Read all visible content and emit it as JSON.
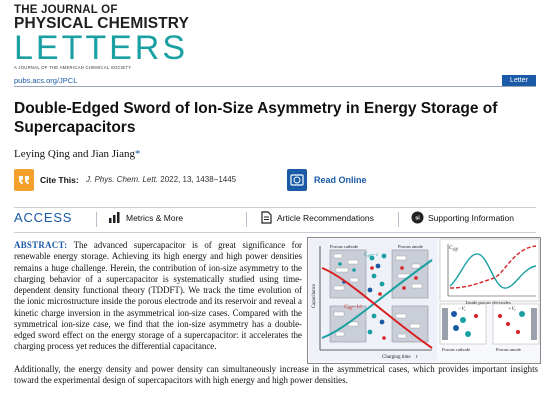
{
  "journal": {
    "line1": "THE JOURNAL OF",
    "line2": "PHYSICAL CHEMISTRY",
    "line3": "LETTERS",
    "subtitle": "A JOURNAL OF THE AMERICAN CHEMICAL SOCIETY"
  },
  "header": {
    "pubs_link": "pubs.acs.org/JPCL",
    "article_type": "Letter"
  },
  "article": {
    "title": "Double-Edged Sword of Ion-Size Asymmetry in Energy Storage of Supercapacitors",
    "authors": "Leying Qing and Jian Jiang",
    "author_mark": "*"
  },
  "cite": {
    "label": "Cite This:",
    "journal": "J. Phys. Chem. Lett.",
    "details": "2022, 13, 1438−1445"
  },
  "read_online": {
    "label": "Read Online"
  },
  "access": {
    "label": "ACCESS",
    "items": [
      {
        "label": "Metrics & More",
        "icon": "bar-chart-icon"
      },
      {
        "label": "Article Recommendations",
        "icon": "document-icon"
      },
      {
        "label": "Supporting Information",
        "icon": "si-icon"
      }
    ]
  },
  "abstract": {
    "heading": "ABSTRACT:",
    "body": "The advanced supercapacitor is of great significance for renewable energy storage. Achieving its high energy and high power densities remains a huge challenge. Herein, the contribution of ion-size asymmetry to the charging behavior of a supercapacitor is systematically studied using time-dependent density functional theory (TDDFT). We track the time evolution of the ionic microstructure inside the porous electrode and its reservoir and reveal a kinetic charge inversion in the asymmetrical ion-size cases. Compared with the symmetrical ion-size case, we find that the ion-size asymmetry has a double-edged sword effect on the energy storage of a supercapacitor: it accelerates the charging process yet reduces the differential capacitance.",
    "tail": "Additionally, the energy density and power density can simultaneously increase in the asymmetrical cases, which provides important insights toward the experimental design of supercapacitors with high energy and high power densities."
  },
  "figure": {
    "left_ylabel": "Capacitance",
    "left_xlabel": "Charging time",
    "left_xvar": "t",
    "cathode": "Porous cathode",
    "anode": "Porous anode",
    "c_diff": "C",
    "c_sub": "diff",
    "rel1": "~ t",
    "rel2": "~ 1/t",
    "right_ylabel": "C",
    "right_ysub": "diff",
    "right_caption": "Inside porous electrodes",
    "neg_v": "−V",
    "pos_v": "+V",
    "v_sub": "c",
    "cath2": "Porous cathode",
    "anode2": "Porous anode",
    "colors": {
      "teal": "#1aa0a3",
      "red": "#d92020",
      "blue": "#1a5aa6",
      "orange": "#f3a12a"
    }
  }
}
